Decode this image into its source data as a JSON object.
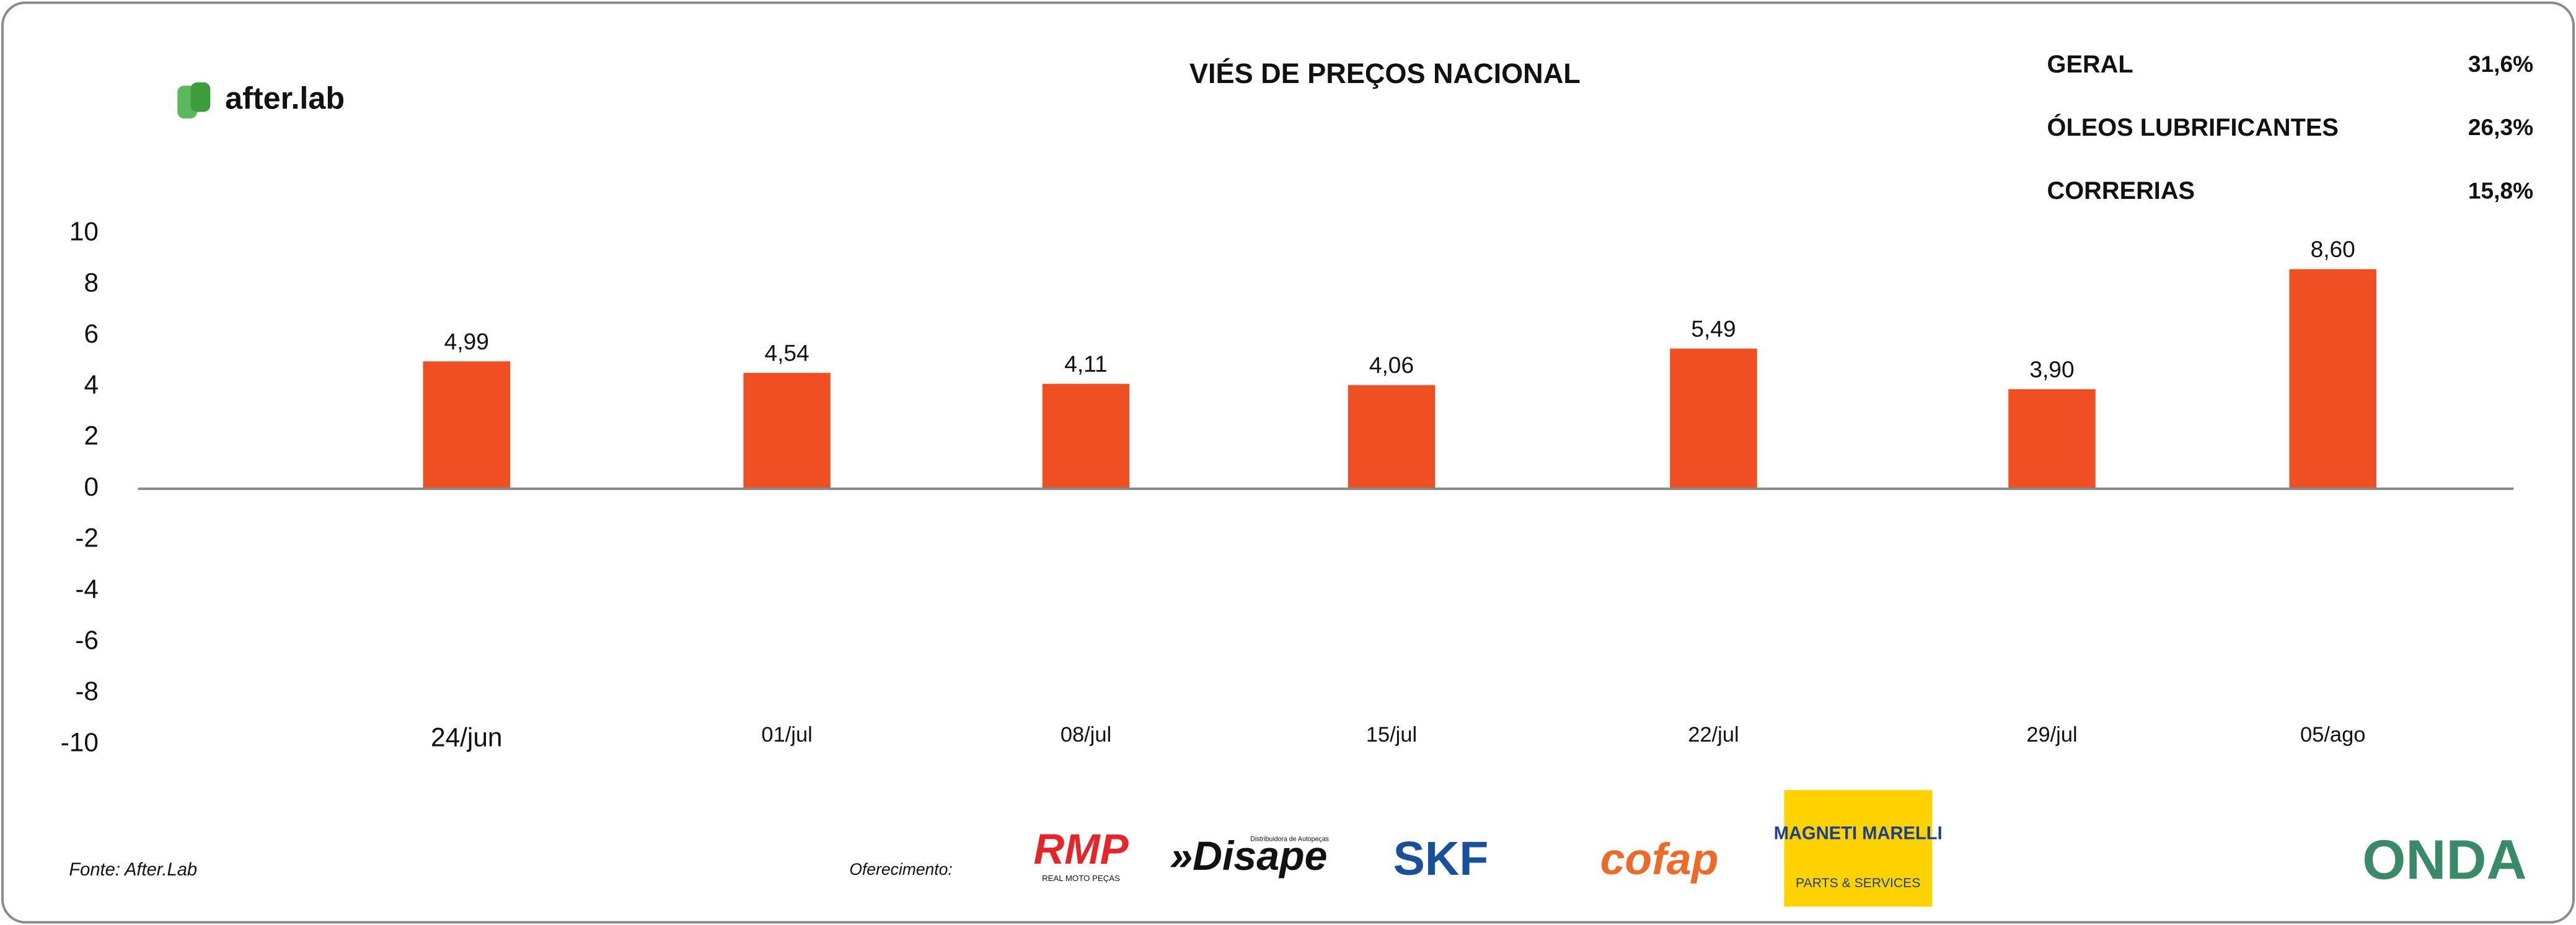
{
  "chart_data": {
    "type": "bar",
    "title": "VIÉS DE PREÇOS NACIONAL",
    "categories": [
      "24/jun",
      "01/jul",
      "08/jul",
      "15/jul",
      "22/jul",
      "29/jul",
      "05/ago"
    ],
    "values": [
      4.99,
      4.54,
      4.11,
      4.06,
      5.49,
      3.9,
      8.6
    ],
    "value_labels": [
      "4,99",
      "4,54",
      "4,11",
      "4,06",
      "5,49",
      "3,90",
      "8,60"
    ],
    "color": "#f04e23",
    "ylim": [
      -10,
      10
    ],
    "yticks": [
      -10,
      -8,
      -6,
      -4,
      -2,
      0,
      2,
      4,
      6,
      8,
      10
    ],
    "grid": false
  },
  "stats": [
    [
      "GERAL",
      "31,6%"
    ],
    [
      "ÓLEOS LUBRIFICANTES",
      "26,3%"
    ],
    [
      "CORRERIAS",
      "15,8%"
    ]
  ],
  "brand": "after.lab",
  "source": "Fonte: After.Lab",
  "sponsor_label": "Oferecimento:",
  "sponsors": {
    "rmp": "RMP",
    "rmp_sub": "REAL MOTO PEÇAS",
    "disape": "»Disape",
    "disape_sub": "Distribuidora de Autopeças",
    "skf": "SKF",
    "cofap": "cofap",
    "magneti": "MAGNETI MARELLI",
    "magneti_sub": "PARTS & SERVICES"
  },
  "partner": "ONDA"
}
